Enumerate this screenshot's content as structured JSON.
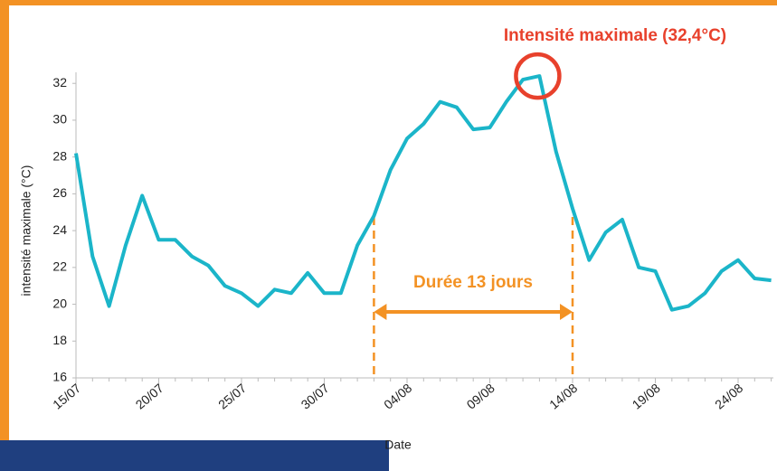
{
  "chart_data": {
    "type": "line",
    "y_label": "intensité maximale (°C)",
    "x_label": "Date",
    "annotations": [
      "Intensité maximale (32,4°C)",
      "Durée 13 jours"
    ],
    "categories": [
      "15/07",
      null,
      null,
      null,
      null,
      "20/07",
      null,
      null,
      null,
      null,
      "25/07",
      null,
      null,
      null,
      null,
      "30/07",
      null,
      null,
      null,
      null,
      "04/08",
      null,
      null,
      null,
      null,
      "09/08",
      null,
      null,
      null,
      null,
      "14/08",
      null,
      null,
      null,
      null,
      "19/08",
      null,
      null,
      null,
      null,
      "24/08",
      null,
      null
    ],
    "series": [
      {
        "name": "intensité maximale",
        "color": "#1bb5c9",
        "values": [
          28.2,
          22.6,
          19.9,
          23.2,
          25.9,
          23.5,
          23.5,
          22.6,
          22.1,
          21.0,
          20.6,
          19.9,
          20.8,
          20.6,
          21.7,
          20.6,
          20.6,
          23.2,
          24.8,
          27.3,
          29.0,
          29.8,
          31.0,
          30.7,
          29.5,
          29.6,
          31.0,
          32.2,
          32.4,
          28.3,
          25.2,
          22.4,
          23.9,
          24.6,
          22.0,
          21.8,
          19.7,
          19.9,
          20.6,
          21.8,
          22.4,
          21.4,
          21.3
        ]
      }
    ],
    "ylim": [
      16,
      32.6
    ],
    "yticks": [
      16,
      18,
      20,
      22,
      24,
      26,
      28,
      30,
      32
    ],
    "grid": false
  }
}
